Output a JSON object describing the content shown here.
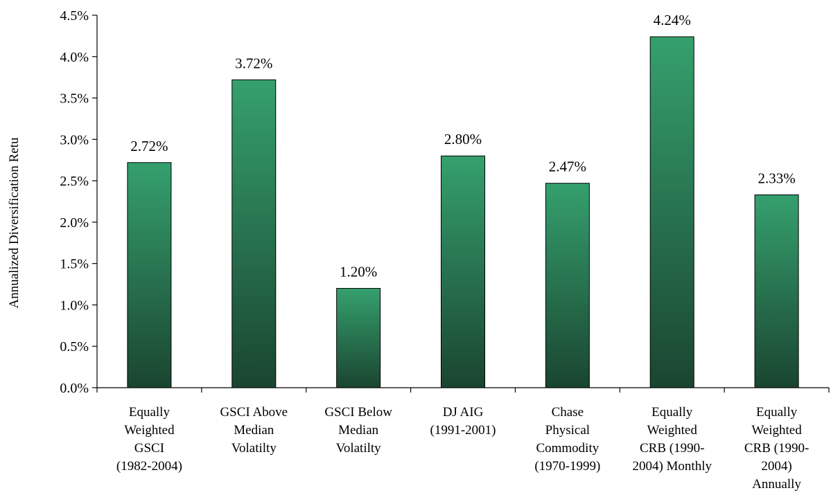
{
  "chart_data": {
    "type": "bar",
    "title": "",
    "ylabel": "Annualized Diversification Retu",
    "xlabel": "",
    "ylim": [
      0,
      4.5
    ],
    "y_ticks": [
      "0.0%",
      "0.5%",
      "1.0%",
      "1.5%",
      "2.0%",
      "2.5%",
      "3.0%",
      "3.5%",
      "4.0%",
      "4.5%"
    ],
    "grid": false,
    "legend": "none",
    "categories": [
      [
        "Equally",
        "Weighted",
        "GSCI",
        "(1982-2004)"
      ],
      [
        "GSCI Above",
        "Median",
        "Volatilty"
      ],
      [
        "GSCI Below",
        "Median",
        "Volatilty"
      ],
      [
        "DJ AIG",
        "(1991-2001)"
      ],
      [
        "Chase",
        "Physical",
        "Commodity",
        "(1970-1999)"
      ],
      [
        "Equally",
        "Weighted",
        "CRB (1990-",
        "2004) Monthly"
      ],
      [
        "Equally",
        "Weighted",
        "CRB (1990-",
        "2004)",
        "Annually"
      ]
    ],
    "values": [
      2.72,
      3.72,
      1.2,
      2.8,
      2.47,
      4.24,
      2.33
    ],
    "data_labels": [
      "2.72%",
      "3.72%",
      "1.20%",
      "2.80%",
      "2.47%",
      "4.24%",
      "2.33%"
    ],
    "colors": {
      "bar_top": "#35a06e",
      "bar_bottom": "#1a4530",
      "bar_stroke": "#000000",
      "axis": "#000000"
    }
  }
}
